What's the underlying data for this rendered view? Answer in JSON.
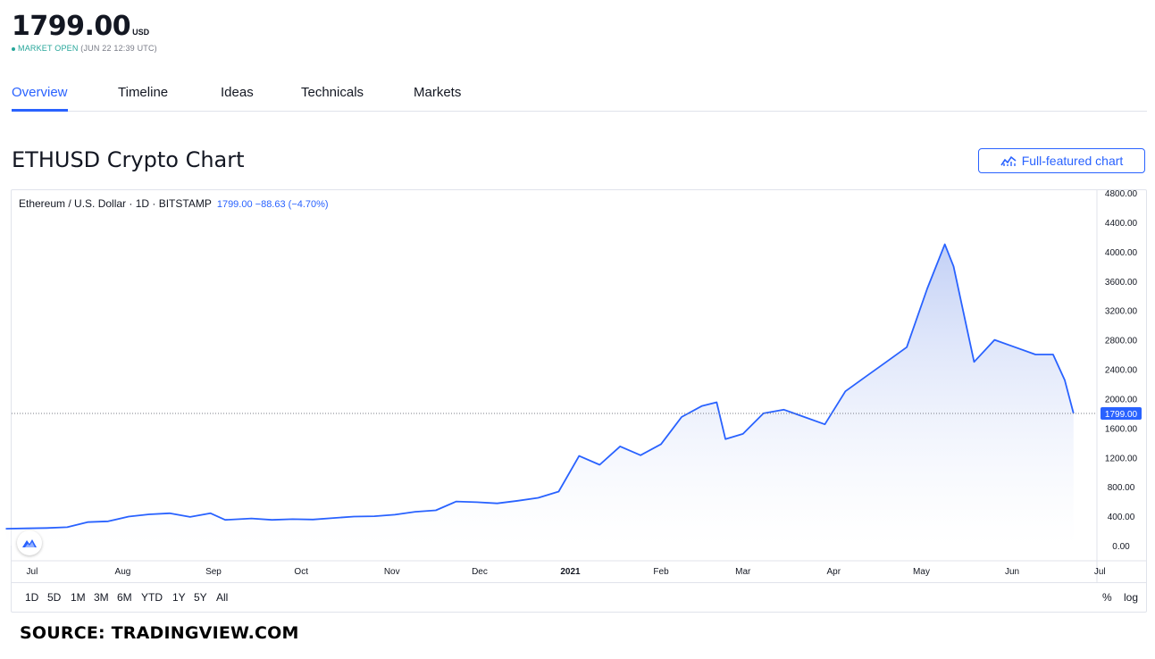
{
  "header": {
    "price": "1799.00",
    "currency": "USD",
    "status_label": "MARKET OPEN",
    "status_time": "(JUN 22 12:39 UTC)",
    "status_color": "#26a69a"
  },
  "tabs": [
    {
      "label": "Overview",
      "active": true
    },
    {
      "label": "Timeline",
      "active": false
    },
    {
      "label": "Ideas",
      "active": false
    },
    {
      "label": "Technicals",
      "active": false
    },
    {
      "label": "Markets",
      "active": false
    }
  ],
  "section_title": "ETHUSD Crypto Chart",
  "full_chart_button": {
    "label": "Full-featured chart",
    "icon": "chart-icon"
  },
  "legend": {
    "symbol": "Ethereum / U.S. Dollar · 1D · BITSTAMP",
    "values": "1799.00 −88.63 (−4.70%)"
  },
  "range_buttons": [
    "1D",
    "5D",
    "1M",
    "3M",
    "6M",
    "YTD",
    "1Y",
    "5Y",
    "All"
  ],
  "scale_buttons": [
    "%",
    "log"
  ],
  "source_text": "SOURCE: TRADINGVIEW.COM",
  "chart_data": {
    "type": "area",
    "title": "",
    "xlabel": "",
    "ylabel": "",
    "x_range": [
      "2020-06-22",
      "2021-06-22"
    ],
    "ylim": [
      0,
      4800
    ],
    "y_ticks": [
      0,
      400,
      800,
      1200,
      1600,
      2000,
      2400,
      2800,
      3200,
      3600,
      4000,
      4400,
      4800
    ],
    "y_tick_labels": [
      "0.00",
      "400.00",
      "800.00",
      "1200.00",
      "1600.00",
      "2000.00",
      "2400.00",
      "2800.00",
      "3200.00",
      "3600.00",
      "4000.00",
      "4400.00",
      "4800.00"
    ],
    "x_ticks": [
      {
        "date": "2020-07-01",
        "label": "Jul"
      },
      {
        "date": "2020-08-01",
        "label": "Aug"
      },
      {
        "date": "2020-09-01",
        "label": "Sep"
      },
      {
        "date": "2020-10-01",
        "label": "Oct"
      },
      {
        "date": "2020-11-01",
        "label": "Nov"
      },
      {
        "date": "2020-12-01",
        "label": "Dec"
      },
      {
        "date": "2021-01-01",
        "label": "2021"
      },
      {
        "date": "2021-02-01",
        "label": "Feb"
      },
      {
        "date": "2021-03-01",
        "label": "Mar"
      },
      {
        "date": "2021-04-01",
        "label": "Apr"
      },
      {
        "date": "2021-05-01",
        "label": "May"
      },
      {
        "date": "2021-06-01",
        "label": "Jun"
      },
      {
        "date": "2021-07-01",
        "label": "Jul"
      }
    ],
    "last_price": 1799.0,
    "last_price_label": "1799.00",
    "line_color": "#2962ff",
    "series": [
      {
        "x": [
          "2020-06-22",
          "2020-06-29",
          "2020-07-06",
          "2020-07-13",
          "2020-07-20",
          "2020-07-27",
          "2020-08-03",
          "2020-08-10",
          "2020-08-17",
          "2020-08-24",
          "2020-08-31",
          "2020-09-05",
          "2020-09-14",
          "2020-09-21",
          "2020-09-28",
          "2020-10-05",
          "2020-10-12",
          "2020-10-19",
          "2020-10-26",
          "2020-11-02",
          "2020-11-09",
          "2020-11-16",
          "2020-11-23",
          "2020-11-30",
          "2020-12-07",
          "2020-12-14",
          "2020-12-21",
          "2020-12-28",
          "2021-01-04",
          "2021-01-11",
          "2021-01-18",
          "2021-01-25",
          "2021-02-01",
          "2021-02-08",
          "2021-02-15",
          "2021-02-20",
          "2021-02-23",
          "2021-03-01",
          "2021-03-08",
          "2021-03-15",
          "2021-03-22",
          "2021-03-29",
          "2021-04-05",
          "2021-04-12",
          "2021-04-19",
          "2021-04-26",
          "2021-05-03",
          "2021-05-09",
          "2021-05-12",
          "2021-05-19",
          "2021-05-26",
          "2021-06-02",
          "2021-06-09",
          "2021-06-15",
          "2021-06-19",
          "2021-06-22"
        ],
        "y": [
          230,
          235,
          240,
          250,
          320,
          330,
          395,
          425,
          440,
          390,
          440,
          350,
          370,
          350,
          360,
          355,
          375,
          395,
          400,
          420,
          460,
          480,
          600,
          590,
          575,
          610,
          650,
          735,
          1220,
          1100,
          1350,
          1230,
          1380,
          1750,
          1900,
          1950,
          1450,
          1520,
          1800,
          1850,
          1750,
          1650,
          2100,
          2300,
          2500,
          2700,
          3500,
          4100,
          3800,
          2500,
          2800,
          2700,
          2600,
          2600,
          2250,
          1799
        ]
      }
    ]
  }
}
